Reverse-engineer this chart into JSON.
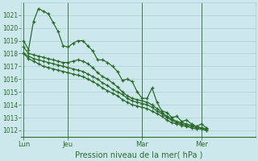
{
  "background_color": "#cce8ed",
  "grid_color": "#aacdd5",
  "line_color": "#2d6b2d",
  "text_color": "#2d6b2d",
  "xlabel": "Pression niveau de la mer( hPa )",
  "ylim": [
    1011.5,
    1022.0
  ],
  "yticks": [
    1012,
    1013,
    1014,
    1015,
    1016,
    1017,
    1018,
    1019,
    1020,
    1021
  ],
  "xtick_labels": [
    "Lun",
    "Jeu",
    "Mar",
    "Mer"
  ],
  "xtick_positions": [
    0,
    9,
    24,
    36
  ],
  "xlim": [
    -0.5,
    47
  ],
  "series1": [
    1019.0,
    1018.3,
    1020.5,
    1021.5,
    1021.3,
    1021.1,
    1020.4,
    1019.7,
    1018.6,
    1018.5,
    1018.8,
    1019.0,
    1019.0,
    1018.6,
    1018.2,
    1017.5,
    1017.5,
    1017.3,
    1017.0,
    1016.6,
    1015.9,
    1016.0,
    1015.8,
    1015.0,
    1014.5,
    1014.5,
    1015.3,
    1014.2,
    1013.5,
    1013.4,
    1013.0,
    1013.1,
    1012.7,
    1012.8,
    1012.5,
    1012.3,
    1012.5,
    1012.2
  ],
  "series2": [
    1018.5,
    1018.0,
    1017.9,
    1017.8,
    1017.7,
    1017.6,
    1017.5,
    1017.4,
    1017.3,
    1017.3,
    1017.4,
    1017.5,
    1017.4,
    1017.2,
    1016.9,
    1016.5,
    1016.2,
    1016.0,
    1015.7,
    1015.4,
    1015.0,
    1014.7,
    1014.5,
    1014.4,
    1014.3,
    1014.2,
    1014.0,
    1013.7,
    1013.4,
    1013.1,
    1012.9,
    1012.7,
    1012.6,
    1012.5,
    1012.4,
    1012.3,
    1012.2,
    1012.1
  ],
  "series3": [
    1018.0,
    1017.8,
    1017.6,
    1017.5,
    1017.4,
    1017.3,
    1017.2,
    1017.1,
    1017.0,
    1016.9,
    1016.8,
    1016.7,
    1016.6,
    1016.4,
    1016.2,
    1016.0,
    1015.7,
    1015.5,
    1015.2,
    1015.0,
    1014.8,
    1014.5,
    1014.3,
    1014.2,
    1014.1,
    1014.0,
    1013.8,
    1013.5,
    1013.3,
    1013.0,
    1012.8,
    1012.6,
    1012.5,
    1012.4,
    1012.3,
    1012.2,
    1012.2,
    1012.1
  ],
  "series4": [
    1018.0,
    1017.6,
    1017.4,
    1017.2,
    1017.0,
    1016.9,
    1016.8,
    1016.7,
    1016.6,
    1016.5,
    1016.4,
    1016.3,
    1016.2,
    1016.0,
    1015.8,
    1015.6,
    1015.3,
    1015.1,
    1014.9,
    1014.7,
    1014.4,
    1014.2,
    1014.0,
    1013.9,
    1013.8,
    1013.7,
    1013.5,
    1013.3,
    1013.1,
    1012.8,
    1012.6,
    1012.5,
    1012.4,
    1012.3,
    1012.2,
    1012.1,
    1012.1,
    1012.0
  ]
}
